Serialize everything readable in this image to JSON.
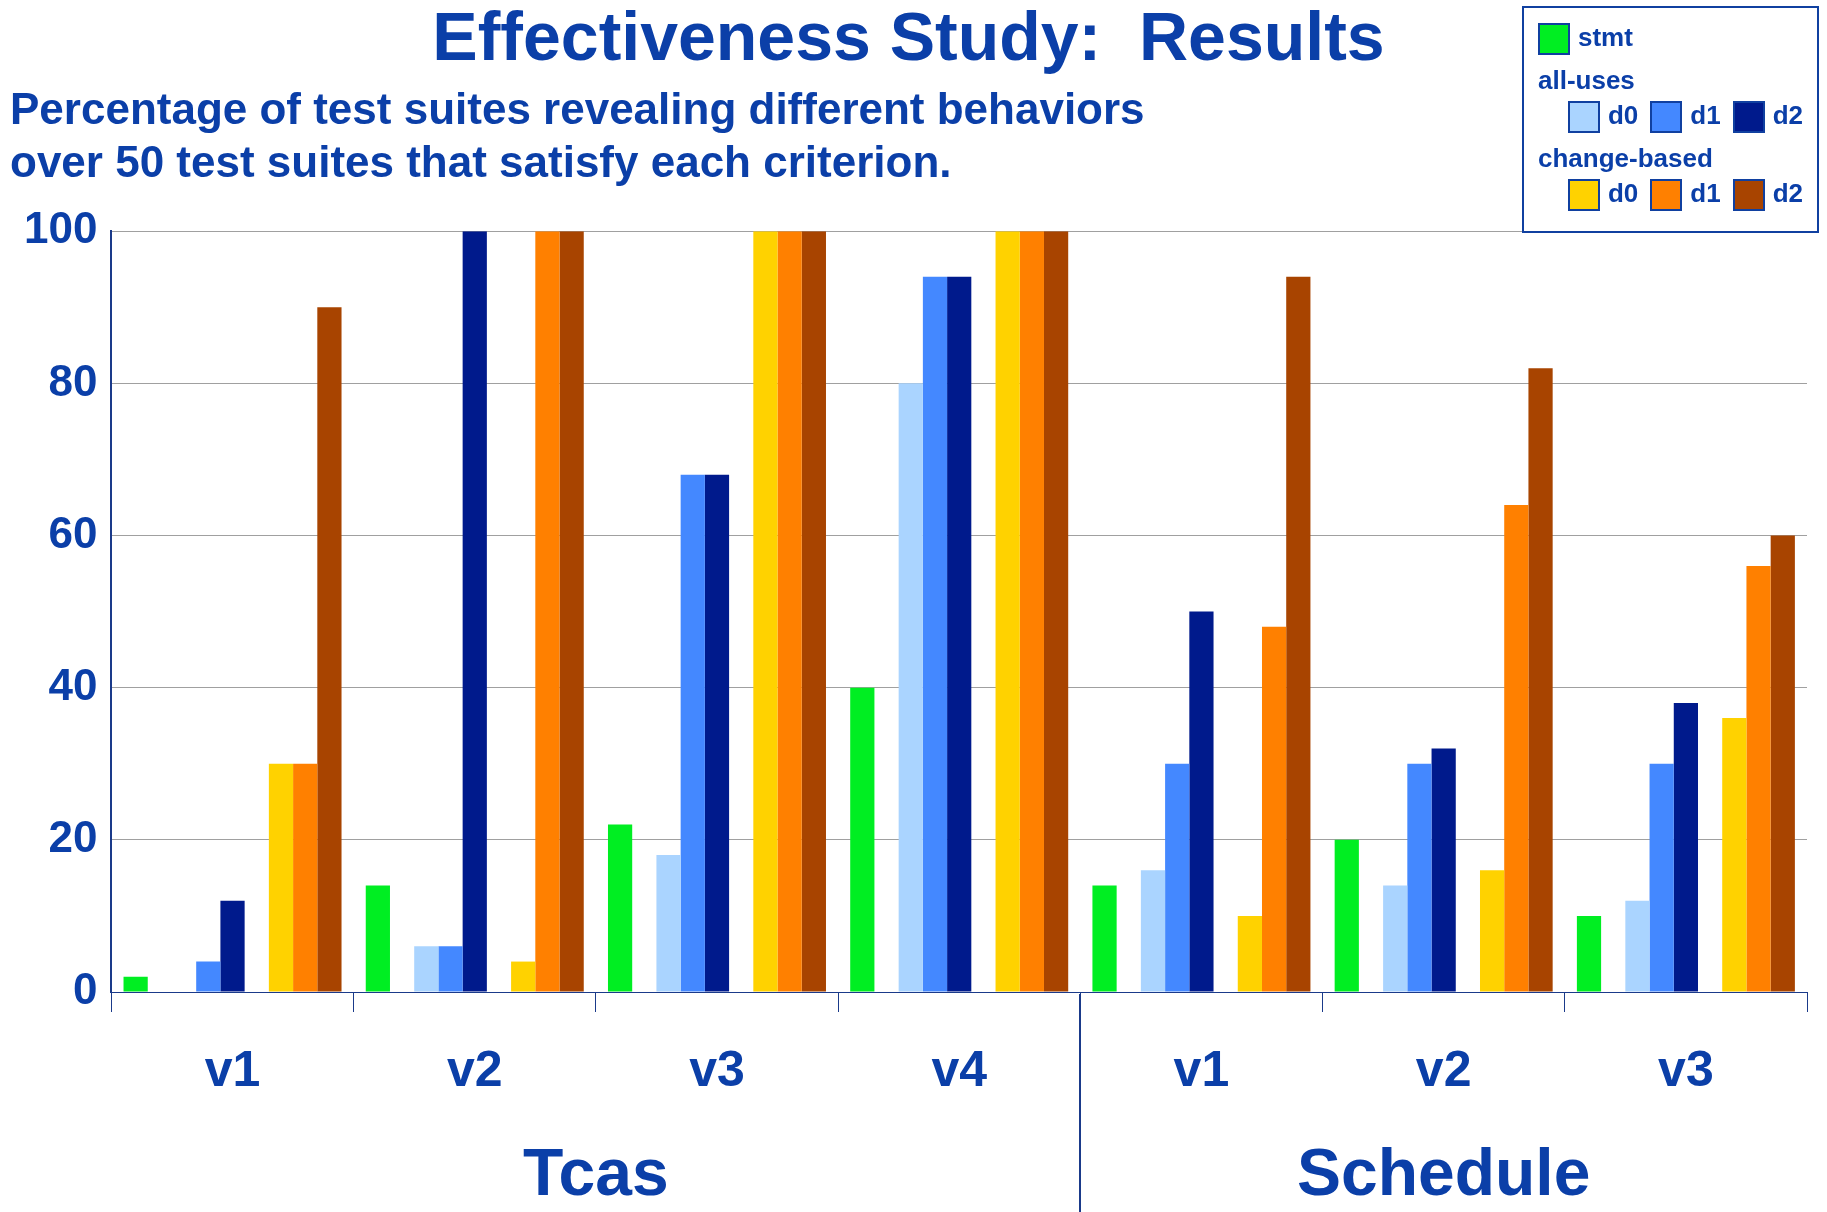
{
  "chart_data": {
    "type": "bar",
    "title": "Effectiveness Study:  Results",
    "subtitle": "Percentage of test suites revealing different behaviors\nover 50 test suites that satisfy each criterion.",
    "categories": [
      "v1",
      "v2",
      "v3",
      "v4",
      "v1",
      "v2",
      "v3"
    ],
    "series": [
      {
        "name": "stmt",
        "color": "#00ee22",
        "values": [
          2,
          14,
          22,
          40,
          14,
          20,
          10
        ]
      },
      {
        "name": "d0",
        "color": "#aad4ff",
        "values": [
          0,
          6,
          18,
          80,
          16,
          14,
          12
        ]
      },
      {
        "name": "d1",
        "color": "#4488ff",
        "values": [
          4,
          6,
          68,
          94,
          30,
          30,
          30
        ]
      },
      {
        "name": "d2",
        "color": "#001a8c",
        "values": [
          12,
          100,
          68,
          94,
          50,
          32,
          38
        ]
      },
      {
        "name": "d0",
        "color": "#ffd200",
        "values": [
          30,
          4,
          100,
          100,
          10,
          16,
          36
        ]
      },
      {
        "name": "d1",
        "color": "#ff8000",
        "values": [
          30,
          100,
          100,
          100,
          48,
          64,
          56
        ]
      },
      {
        "name": "d2",
        "color": "#a84400",
        "values": [
          90,
          100,
          100,
          100,
          94,
          82,
          60
        ]
      }
    ],
    "ylim": [
      0,
      100
    ],
    "yticks": [
      0,
      20,
      40,
      60,
      80,
      100
    ],
    "grid": "y",
    "legend": "top right",
    "annotations": [
      "all-uses",
      "change-based",
      "Tcas",
      "Schedule"
    ]
  }
}
